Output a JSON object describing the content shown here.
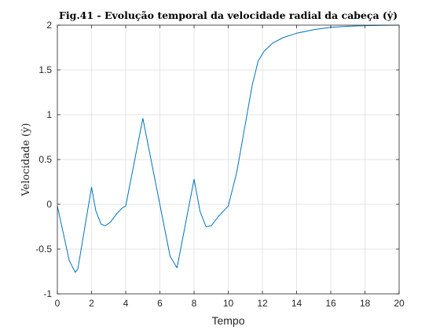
{
  "chart_data": {
    "type": "line",
    "title": "Fig.41 - Evolução temporal da velocidade radial da cabeça (ẏ)",
    "xlabel": "Tempo",
    "ylabel": "Velocidade (ẏ)",
    "xlim": [
      0,
      20
    ],
    "ylim": [
      -1,
      2
    ],
    "xticks": [
      "0",
      "2",
      "4",
      "6",
      "8",
      "10",
      "12",
      "14",
      "16",
      "18",
      "20"
    ],
    "yticks": [
      "-1",
      "-0.5",
      "0",
      "0.5",
      "1",
      "1.5",
      "2"
    ],
    "grid": true,
    "colors": {
      "series": "#0072BD",
      "grid": "#dcdcdc",
      "axes": "#262626"
    },
    "series": [
      {
        "x": [
          0,
          0.7,
          1.05,
          1.2,
          2.0,
          2.25,
          2.55,
          2.8,
          3.1,
          3.5,
          3.8,
          4.0,
          5.0,
          6.6,
          7.0,
          8.0,
          8.35,
          8.7,
          9.0,
          9.4,
          9.8,
          10.0,
          10.5,
          11.0,
          11.4,
          11.75,
          12.1,
          12.6,
          13.2,
          14.0,
          15.0,
          16.0,
          17.0,
          18.0,
          19.0,
          20.0
        ],
        "y": [
          -0.02,
          -0.63,
          -0.76,
          -0.72,
          0.19,
          -0.07,
          -0.22,
          -0.24,
          -0.2,
          -0.1,
          -0.04,
          -0.02,
          0.96,
          -0.58,
          -0.71,
          0.28,
          -0.08,
          -0.25,
          -0.24,
          -0.14,
          -0.06,
          -0.02,
          0.36,
          0.9,
          1.33,
          1.6,
          1.71,
          1.8,
          1.86,
          1.91,
          1.95,
          1.975,
          1.988,
          1.995,
          1.998,
          2.0
        ]
      }
    ]
  }
}
